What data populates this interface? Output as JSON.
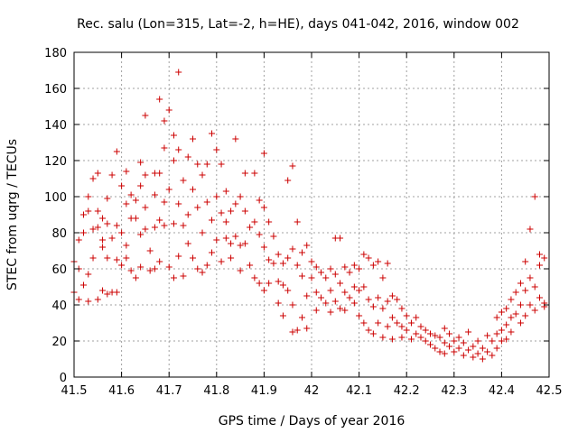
{
  "chart_data": {
    "type": "scatter",
    "title": "Rec. salu (Lon=315, Lat=-2, h=HE), days 041-042, 2016, window 002",
    "xlabel": "GPS time / Days of year 2016",
    "ylabel": "STEC from uqrg / TECUs",
    "xlim": [
      41.5,
      42.5
    ],
    "ylim": [
      0,
      180
    ],
    "xticks": [
      "41.5",
      "41.6",
      "41.7",
      "41.8",
      "41.9",
      "42",
      "42.1",
      "42.2",
      "42.3",
      "42.4",
      "42.5"
    ],
    "xtick_values": [
      41.5,
      41.6,
      41.7,
      41.8,
      41.9,
      42.0,
      42.1,
      42.2,
      42.3,
      42.4,
      42.5
    ],
    "yticks": [
      "0",
      "20",
      "40",
      "60",
      "80",
      "100",
      "120",
      "140",
      "160",
      "180"
    ],
    "ytick_values": [
      0,
      20,
      40,
      60,
      80,
      100,
      120,
      140,
      160,
      180
    ],
    "grid": true,
    "marker": "+",
    "color": "#cc0000",
    "points": [
      [
        41.5,
        47
      ],
      [
        41.5,
        64
      ],
      [
        41.51,
        43
      ],
      [
        41.51,
        60
      ],
      [
        41.51,
        76
      ],
      [
        41.52,
        51
      ],
      [
        41.52,
        80
      ],
      [
        41.52,
        90
      ],
      [
        41.53,
        42
      ],
      [
        41.53,
        57
      ],
      [
        41.53,
        92
      ],
      [
        41.53,
        100
      ],
      [
        41.54,
        110
      ],
      [
        41.54,
        82
      ],
      [
        41.54,
        66
      ],
      [
        41.55,
        43
      ],
      [
        41.55,
        113
      ],
      [
        41.55,
        92
      ],
      [
        41.55,
        83
      ],
      [
        41.56,
        76
      ],
      [
        41.56,
        48
      ],
      [
        41.56,
        88
      ],
      [
        41.56,
        72
      ],
      [
        41.57,
        99
      ],
      [
        41.57,
        46
      ],
      [
        41.57,
        85
      ],
      [
        41.57,
        66
      ],
      [
        41.58,
        77
      ],
      [
        41.58,
        47
      ],
      [
        41.58,
        112
      ],
      [
        41.59,
        125
      ],
      [
        41.59,
        84
      ],
      [
        41.59,
        65
      ],
      [
        41.59,
        47
      ],
      [
        41.6,
        106
      ],
      [
        41.6,
        80
      ],
      [
        41.6,
        62
      ],
      [
        41.61,
        114
      ],
      [
        41.61,
        96
      ],
      [
        41.61,
        73
      ],
      [
        41.61,
        66
      ],
      [
        41.62,
        101
      ],
      [
        41.62,
        88
      ],
      [
        41.62,
        59
      ],
      [
        41.63,
        88
      ],
      [
        41.63,
        98
      ],
      [
        41.63,
        55
      ],
      [
        41.64,
        119
      ],
      [
        41.64,
        106
      ],
      [
        41.64,
        79
      ],
      [
        41.64,
        61
      ],
      [
        41.65,
        145
      ],
      [
        41.65,
        112
      ],
      [
        41.65,
        94
      ],
      [
        41.65,
        82
      ],
      [
        41.66,
        59
      ],
      [
        41.66,
        70
      ],
      [
        41.67,
        113
      ],
      [
        41.67,
        101
      ],
      [
        41.67,
        83
      ],
      [
        41.67,
        60
      ],
      [
        41.68,
        154
      ],
      [
        41.68,
        113
      ],
      [
        41.68,
        87
      ],
      [
        41.68,
        64
      ],
      [
        41.69,
        142
      ],
      [
        41.69,
        127
      ],
      [
        41.69,
        97
      ],
      [
        41.69,
        84
      ],
      [
        41.7,
        148
      ],
      [
        41.7,
        104
      ],
      [
        41.7,
        61
      ],
      [
        41.71,
        134
      ],
      [
        41.71,
        120
      ],
      [
        41.71,
        85
      ],
      [
        41.71,
        55
      ],
      [
        41.72,
        169
      ],
      [
        41.72,
        126
      ],
      [
        41.72,
        96
      ],
      [
        41.72,
        67
      ],
      [
        41.73,
        109
      ],
      [
        41.73,
        84
      ],
      [
        41.73,
        56
      ],
      [
        41.74,
        122
      ],
      [
        41.74,
        90
      ],
      [
        41.74,
        74
      ],
      [
        41.75,
        132
      ],
      [
        41.75,
        104
      ],
      [
        41.75,
        66
      ],
      [
        41.76,
        118
      ],
      [
        41.76,
        94
      ],
      [
        41.76,
        60
      ],
      [
        41.77,
        112
      ],
      [
        41.77,
        80
      ],
      [
        41.77,
        58
      ],
      [
        41.78,
        118
      ],
      [
        41.78,
        97
      ],
      [
        41.78,
        62
      ],
      [
        41.79,
        135
      ],
      [
        41.79,
        87
      ],
      [
        41.79,
        69
      ],
      [
        41.8,
        126
      ],
      [
        41.8,
        100
      ],
      [
        41.8,
        76
      ],
      [
        41.81,
        118
      ],
      [
        41.81,
        91
      ],
      [
        41.81,
        64
      ],
      [
        41.82,
        103
      ],
      [
        41.82,
        86
      ],
      [
        41.82,
        77
      ],
      [
        41.83,
        92
      ],
      [
        41.83,
        74
      ],
      [
        41.83,
        66
      ],
      [
        41.84,
        132
      ],
      [
        41.84,
        96
      ],
      [
        41.84,
        78
      ],
      [
        41.85,
        100
      ],
      [
        41.85,
        73
      ],
      [
        41.85,
        59
      ],
      [
        41.86,
        113
      ],
      [
        41.86,
        92
      ],
      [
        41.86,
        74
      ],
      [
        41.87,
        83
      ],
      [
        41.87,
        62
      ],
      [
        41.88,
        113
      ],
      [
        41.88,
        86
      ],
      [
        41.88,
        55
      ],
      [
        41.89,
        98
      ],
      [
        41.89,
        79
      ],
      [
        41.89,
        52
      ],
      [
        41.9,
        124
      ],
      [
        41.9,
        94
      ],
      [
        41.9,
        72
      ],
      [
        41.9,
        48
      ],
      [
        41.91,
        86
      ],
      [
        41.91,
        65
      ],
      [
        41.91,
        52
      ],
      [
        41.92,
        78
      ],
      [
        41.92,
        63
      ],
      [
        41.93,
        68
      ],
      [
        41.93,
        53
      ],
      [
        41.93,
        41
      ],
      [
        41.94,
        63
      ],
      [
        41.94,
        51
      ],
      [
        41.94,
        34
      ],
      [
        41.95,
        109
      ],
      [
        41.95,
        66
      ],
      [
        41.95,
        48
      ],
      [
        41.96,
        117
      ],
      [
        41.96,
        71
      ],
      [
        41.96,
        40
      ],
      [
        41.96,
        25
      ],
      [
        41.97,
        86
      ],
      [
        41.97,
        62
      ],
      [
        41.97,
        26
      ],
      [
        41.98,
        69
      ],
      [
        41.98,
        56
      ],
      [
        41.98,
        33
      ],
      [
        41.99,
        73
      ],
      [
        41.99,
        45
      ],
      [
        41.99,
        27
      ],
      [
        42.0,
        64
      ],
      [
        42.0,
        55
      ],
      [
        42.01,
        61
      ],
      [
        42.01,
        47
      ],
      [
        42.01,
        37
      ],
      [
        42.02,
        58
      ],
      [
        42.02,
        44
      ],
      [
        42.03,
        55
      ],
      [
        42.03,
        41
      ],
      [
        42.04,
        60
      ],
      [
        42.04,
        48
      ],
      [
        42.04,
        36
      ],
      [
        42.05,
        77
      ],
      [
        42.05,
        57
      ],
      [
        42.05,
        42
      ],
      [
        42.06,
        77
      ],
      [
        42.06,
        52
      ],
      [
        42.06,
        38
      ],
      [
        42.07,
        61
      ],
      [
        42.07,
        47
      ],
      [
        42.07,
        37
      ],
      [
        42.08,
        58
      ],
      [
        42.08,
        44
      ],
      [
        42.09,
        62
      ],
      [
        42.09,
        50
      ],
      [
        42.09,
        41
      ],
      [
        42.1,
        60
      ],
      [
        42.1,
        48
      ],
      [
        42.1,
        34
      ],
      [
        42.11,
        68
      ],
      [
        42.11,
        50
      ],
      [
        42.11,
        30
      ],
      [
        42.12,
        66
      ],
      [
        42.12,
        43
      ],
      [
        42.12,
        26
      ],
      [
        42.13,
        62
      ],
      [
        42.13,
        39
      ],
      [
        42.13,
        24
      ],
      [
        42.14,
        64
      ],
      [
        42.14,
        44
      ],
      [
        42.14,
        30
      ],
      [
        42.15,
        55
      ],
      [
        42.15,
        38
      ],
      [
        42.15,
        22
      ],
      [
        42.16,
        63
      ],
      [
        42.16,
        42
      ],
      [
        42.16,
        28
      ],
      [
        42.17,
        45
      ],
      [
        42.17,
        33
      ],
      [
        42.17,
        21
      ],
      [
        42.18,
        43
      ],
      [
        42.18,
        30
      ],
      [
        42.19,
        38
      ],
      [
        42.19,
        28
      ],
      [
        42.19,
        22
      ],
      [
        42.2,
        34
      ],
      [
        42.2,
        26
      ],
      [
        42.21,
        30
      ],
      [
        42.21,
        21
      ],
      [
        42.22,
        33
      ],
      [
        42.22,
        24
      ],
      [
        42.23,
        28
      ],
      [
        42.23,
        22
      ],
      [
        42.24,
        26
      ],
      [
        42.24,
        20
      ],
      [
        42.25,
        24
      ],
      [
        42.25,
        18
      ],
      [
        42.26,
        23
      ],
      [
        42.26,
        16
      ],
      [
        42.27,
        22
      ],
      [
        42.27,
        14
      ],
      [
        42.28,
        27
      ],
      [
        42.28,
        19
      ],
      [
        42.28,
        13
      ],
      [
        42.29,
        24
      ],
      [
        42.29,
        17
      ],
      [
        42.3,
        20
      ],
      [
        42.3,
        14
      ],
      [
        42.31,
        22
      ],
      [
        42.31,
        16
      ],
      [
        42.32,
        19
      ],
      [
        42.32,
        12
      ],
      [
        42.33,
        25
      ],
      [
        42.33,
        15
      ],
      [
        42.34,
        17
      ],
      [
        42.34,
        11
      ],
      [
        42.35,
        20
      ],
      [
        42.35,
        13
      ],
      [
        42.36,
        16
      ],
      [
        42.36,
        10
      ],
      [
        42.37,
        23
      ],
      [
        42.37,
        14
      ],
      [
        42.38,
        20
      ],
      [
        42.38,
        12
      ],
      [
        42.39,
        33
      ],
      [
        42.39,
        24
      ],
      [
        42.39,
        16
      ],
      [
        42.4,
        36
      ],
      [
        42.4,
        26
      ],
      [
        42.4,
        20
      ],
      [
        42.41,
        38
      ],
      [
        42.41,
        29
      ],
      [
        42.41,
        21
      ],
      [
        42.42,
        43
      ],
      [
        42.42,
        33
      ],
      [
        42.42,
        25
      ],
      [
        42.43,
        47
      ],
      [
        42.43,
        35
      ],
      [
        42.44,
        52
      ],
      [
        42.44,
        40
      ],
      [
        42.44,
        30
      ],
      [
        42.45,
        64
      ],
      [
        42.45,
        48
      ],
      [
        42.45,
        34
      ],
      [
        42.46,
        82
      ],
      [
        42.46,
        55
      ],
      [
        42.46,
        40
      ],
      [
        42.47,
        100
      ],
      [
        42.47,
        50
      ],
      [
        42.47,
        37
      ],
      [
        42.48,
        68
      ],
      [
        42.48,
        62
      ],
      [
        42.48,
        44
      ],
      [
        42.49,
        66
      ],
      [
        42.49,
        41
      ],
      [
        42.49,
        39
      ]
    ]
  }
}
